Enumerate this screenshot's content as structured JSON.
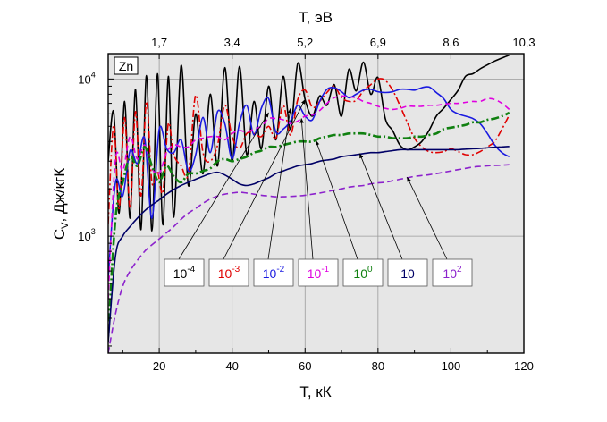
{
  "chart_data": {
    "type": "line",
    "panel_label": "Zn",
    "xlabel": "T, кК",
    "top_xlabel": "T, эВ",
    "ylabel": "C",
    "ylabel_sub": "V",
    "ylabel_rest": ", Дж/кгК",
    "x_ticks": [
      "20",
      "40",
      "60",
      "80",
      "100",
      "120"
    ],
    "x_tick_values": [
      20,
      40,
      60,
      80,
      100,
      120
    ],
    "top_ticks": [
      "1,7",
      "3,4",
      "5,2",
      "6,9",
      "8,6",
      "10,3"
    ],
    "top_tick_values": [
      20,
      40,
      60,
      80,
      100,
      120
    ],
    "y_ticks": [
      {
        "value": 1000,
        "base": "10",
        "exp": "3"
      },
      {
        "value": 10000,
        "base": "10",
        "exp": "4"
      }
    ],
    "xlim": [
      6,
      120
    ],
    "ylim": [
      180,
      14500
    ],
    "yscale": "log",
    "grid": true,
    "legend_placement": "center-bottom boxes with leader arrows",
    "series": [
      {
        "name": "10",
        "exp": "-4",
        "color": "#000000",
        "dash": "solid",
        "x": [
          6,
          7.5,
          9,
          10.5,
          12,
          13.5,
          15,
          16.5,
          18,
          19.5,
          21,
          22.5,
          24,
          26,
          28,
          30,
          32,
          34,
          36,
          38,
          40,
          42,
          44,
          46,
          48,
          50,
          52,
          54,
          56,
          58,
          60,
          62,
          64,
          66,
          68,
          70,
          72,
          74,
          76,
          78,
          80,
          82,
          84,
          86,
          88,
          90,
          92,
          94,
          96,
          98,
          100,
          102,
          104,
          106,
          108,
          110,
          112,
          114,
          116
        ],
        "y": [
          3000,
          6200,
          1400,
          7200,
          1300,
          8600,
          1100,
          10500,
          1080,
          10800,
          1180,
          10400,
          1320,
          12200,
          2100,
          6000,
          2500,
          8000,
          2800,
          11800,
          3000,
          12000,
          3300,
          7200,
          3600,
          9000,
          4100,
          10400,
          4800,
          12600,
          7400,
          5800,
          7800,
          6800,
          9200,
          5800,
          11500,
          8400,
          12800,
          8000,
          10200,
          5600,
          4700,
          3800,
          3550,
          3700,
          4000,
          4700,
          5800,
          6500,
          7400,
          8500,
          10400,
          10800,
          11600,
          12300,
          13000,
          13600,
          14200
        ]
      },
      {
        "name": "10",
        "exp": "-3",
        "color": "#e00000",
        "dash": "8 3 2 3",
        "x": [
          6,
          7.5,
          9,
          10.5,
          12,
          13.5,
          15,
          16.5,
          18,
          19.5,
          21,
          22.5,
          24,
          26,
          28,
          30,
          32,
          34,
          36,
          38,
          40,
          42,
          44,
          46,
          48,
          50,
          52,
          54,
          56,
          58,
          60,
          62,
          64,
          66,
          68,
          70,
          72,
          74,
          76,
          78,
          80,
          82,
          84,
          86,
          88,
          90,
          92,
          94,
          96,
          98,
          100,
          102,
          104,
          106,
          108,
          110,
          112,
          114,
          116
        ],
        "y": [
          1200,
          5100,
          1500,
          5700,
          1500,
          6200,
          1800,
          7200,
          2200,
          2600,
          1900,
          5200,
          3300,
          2800,
          2500,
          7900,
          3400,
          3000,
          3800,
          6800,
          4300,
          3600,
          4500,
          4500,
          4300,
          5000,
          4200,
          6800,
          4400,
          7400,
          8500,
          6600,
          7200,
          8200,
          9000,
          7600,
          7200,
          7300,
          8400,
          9200,
          10000,
          9800,
          8500,
          6800,
          5300,
          4200,
          3700,
          3450,
          3400,
          3450,
          3600,
          3450,
          3300,
          3300,
          3450,
          3700,
          4000,
          4800,
          5900
        ]
      },
      {
        "name": "10",
        "exp": "-2",
        "color": "#1a1ae0",
        "dash": "solid",
        "x": [
          6,
          8,
          10,
          12,
          14,
          16,
          18,
          20,
          22,
          24,
          26,
          28,
          30,
          32,
          34,
          36,
          38,
          40,
          42,
          44,
          46,
          48,
          50,
          52,
          54,
          56,
          58,
          60,
          62,
          64,
          66,
          68,
          70,
          72,
          74,
          76,
          78,
          80,
          82,
          84,
          86,
          88,
          90,
          92,
          94,
          96,
          98,
          100,
          102,
          104,
          106,
          108,
          110,
          112,
          114,
          116
        ],
        "y": [
          540,
          2200,
          1800,
          3500,
          2900,
          4200,
          1300,
          4800,
          3600,
          3400,
          4100,
          2600,
          3300,
          5700,
          3400,
          6200,
          5200,
          3100,
          5200,
          6800,
          4400,
          6500,
          7500,
          4600,
          4800,
          5400,
          6800,
          5800,
          5500,
          7200,
          8600,
          8800,
          8300,
          7600,
          8000,
          8500,
          8600,
          8300,
          8200,
          8300,
          8600,
          8600,
          8500,
          8800,
          8900,
          8200,
          7500,
          6400,
          6000,
          5800,
          5600,
          5200,
          4500,
          3800,
          3400,
          3200
        ]
      },
      {
        "name": "10",
        "exp": "-1",
        "color": "#e000e0",
        "dash": "6 4",
        "x": [
          6,
          8,
          10,
          12,
          14,
          16,
          18,
          20,
          22,
          24,
          26,
          28,
          30,
          32,
          34,
          36,
          38,
          40,
          42,
          44,
          46,
          48,
          50,
          52,
          54,
          56,
          58,
          60,
          62,
          64,
          66,
          68,
          70,
          72,
          74,
          76,
          78,
          80,
          82,
          84,
          86,
          88,
          90,
          92,
          94,
          96,
          98,
          100,
          102,
          104,
          106,
          108,
          110,
          112,
          114,
          116
        ],
        "y": [
          400,
          3100,
          2600,
          4300,
          3100,
          3800,
          2700,
          2500,
          3400,
          3800,
          3700,
          3700,
          4100,
          4200,
          4300,
          4300,
          4100,
          4500,
          4700,
          4600,
          4800,
          5000,
          5600,
          5600,
          5500,
          5200,
          5400,
          5800,
          5900,
          6300,
          7000,
          7600,
          7800,
          7700,
          7600,
          7200,
          7000,
          6700,
          6500,
          6400,
          6500,
          6700,
          6700,
          6700,
          6800,
          6800,
          6900,
          7000,
          7000,
          7100,
          7200,
          7200,
          7500,
          7400,
          7000,
          6400
        ]
      },
      {
        "name": "10",
        "exp": "0",
        "color": "#108010",
        "dash": "9 3 2 3",
        "x": [
          6,
          8,
          10,
          12,
          14,
          16,
          18,
          20,
          22,
          24,
          26,
          28,
          30,
          32,
          34,
          36,
          38,
          40,
          42,
          44,
          46,
          48,
          50,
          52,
          54,
          56,
          58,
          60,
          62,
          64,
          66,
          68,
          70,
          72,
          74,
          76,
          78,
          80,
          82,
          84,
          86,
          88,
          90,
          92,
          94,
          96,
          98,
          100,
          102,
          104,
          106,
          108,
          110,
          112,
          114,
          116
        ],
        "y": [
          230,
          1300,
          2200,
          3200,
          2800,
          3700,
          2800,
          2200,
          2800,
          2400,
          2200,
          2500,
          2500,
          2600,
          2700,
          3000,
          3100,
          3000,
          3100,
          3200,
          3400,
          3500,
          3700,
          3700,
          3800,
          3900,
          4000,
          4000,
          4000,
          4200,
          4300,
          4400,
          4400,
          4500,
          4500,
          4500,
          4400,
          4300,
          4300,
          4200,
          4200,
          4200,
          4300,
          4300,
          4400,
          4500,
          4800,
          4900,
          5000,
          5100,
          5300,
          5300,
          5500,
          5600,
          5800,
          6100
        ]
      },
      {
        "name": "10",
        "exp": "",
        "color": "#000066",
        "dash": "solid",
        "x": [
          6,
          8,
          10,
          12,
          14,
          16,
          18,
          20,
          22,
          24,
          26,
          28,
          30,
          32,
          34,
          36,
          38,
          40,
          42,
          44,
          46,
          48,
          50,
          52,
          54,
          56,
          58,
          60,
          62,
          64,
          66,
          68,
          70,
          72,
          74,
          76,
          78,
          80,
          82,
          84,
          86,
          88,
          90,
          92,
          94,
          96,
          98,
          100,
          102,
          104,
          106,
          108,
          110,
          112,
          114,
          116
        ],
        "y": [
          210,
          750,
          1000,
          1150,
          1300,
          1450,
          1580,
          1700,
          1850,
          1980,
          2100,
          2200,
          2300,
          2400,
          2500,
          2550,
          2450,
          2300,
          2150,
          2100,
          2150,
          2250,
          2350,
          2500,
          2600,
          2700,
          2800,
          2850,
          2900,
          3000,
          3050,
          3100,
          3200,
          3250,
          3300,
          3350,
          3400,
          3400,
          3450,
          3500,
          3550,
          3550,
          3550,
          3550,
          3550,
          3550,
          3550,
          3550,
          3550,
          3580,
          3600,
          3620,
          3650,
          3680,
          3700,
          3720
        ]
      },
      {
        "name": "10",
        "exp": "2",
        "color": "#8c22cc",
        "dash": "7 4",
        "x": [
          6,
          8,
          10,
          12,
          14,
          16,
          18,
          20,
          22,
          24,
          26,
          28,
          30,
          32,
          34,
          36,
          38,
          40,
          42,
          44,
          46,
          48,
          50,
          52,
          54,
          56,
          58,
          60,
          62,
          64,
          66,
          68,
          70,
          72,
          74,
          76,
          78,
          80,
          82,
          84,
          86,
          88,
          90,
          92,
          94,
          96,
          98,
          100,
          102,
          104,
          106,
          108,
          110,
          112,
          114,
          116
        ],
        "y": [
          180,
          320,
          480,
          600,
          700,
          800,
          880,
          960,
          1050,
          1150,
          1280,
          1400,
          1500,
          1620,
          1720,
          1800,
          1850,
          1880,
          1900,
          1880,
          1850,
          1820,
          1800,
          1780,
          1780,
          1790,
          1800,
          1820,
          1850,
          1880,
          1920,
          1960,
          2000,
          2050,
          2080,
          2100,
          2150,
          2180,
          2200,
          2250,
          2300,
          2350,
          2400,
          2430,
          2460,
          2500,
          2550,
          2600,
          2650,
          2700,
          2750,
          2780,
          2800,
          2820,
          2830,
          2850
        ]
      }
    ],
    "legend": [
      {
        "base": "10",
        "exp": "-4",
        "color": "#000000",
        "target_x": 50,
        "target_y": 6100
      },
      {
        "base": "10",
        "exp": "-3",
        "color": "#e00000",
        "target_x": 60,
        "target_y": 7400
      },
      {
        "base": "10",
        "exp": "-2",
        "color": "#1a1ae0",
        "target_x": 56,
        "target_y": 6500
      },
      {
        "base": "10",
        "exp": "-1",
        "color": "#e000e0",
        "target_x": 59,
        "target_y": 5600
      },
      {
        "base": "10",
        "exp": "0",
        "color": "#108010",
        "target_x": 63,
        "target_y": 4050
      },
      {
        "base": "10",
        "exp": "",
        "color": "#000066",
        "target_x": 75,
        "target_y": 3350
      },
      {
        "base": "10",
        "exp": "2",
        "color": "#8c22cc",
        "target_x": 88,
        "target_y": 2370
      }
    ]
  }
}
